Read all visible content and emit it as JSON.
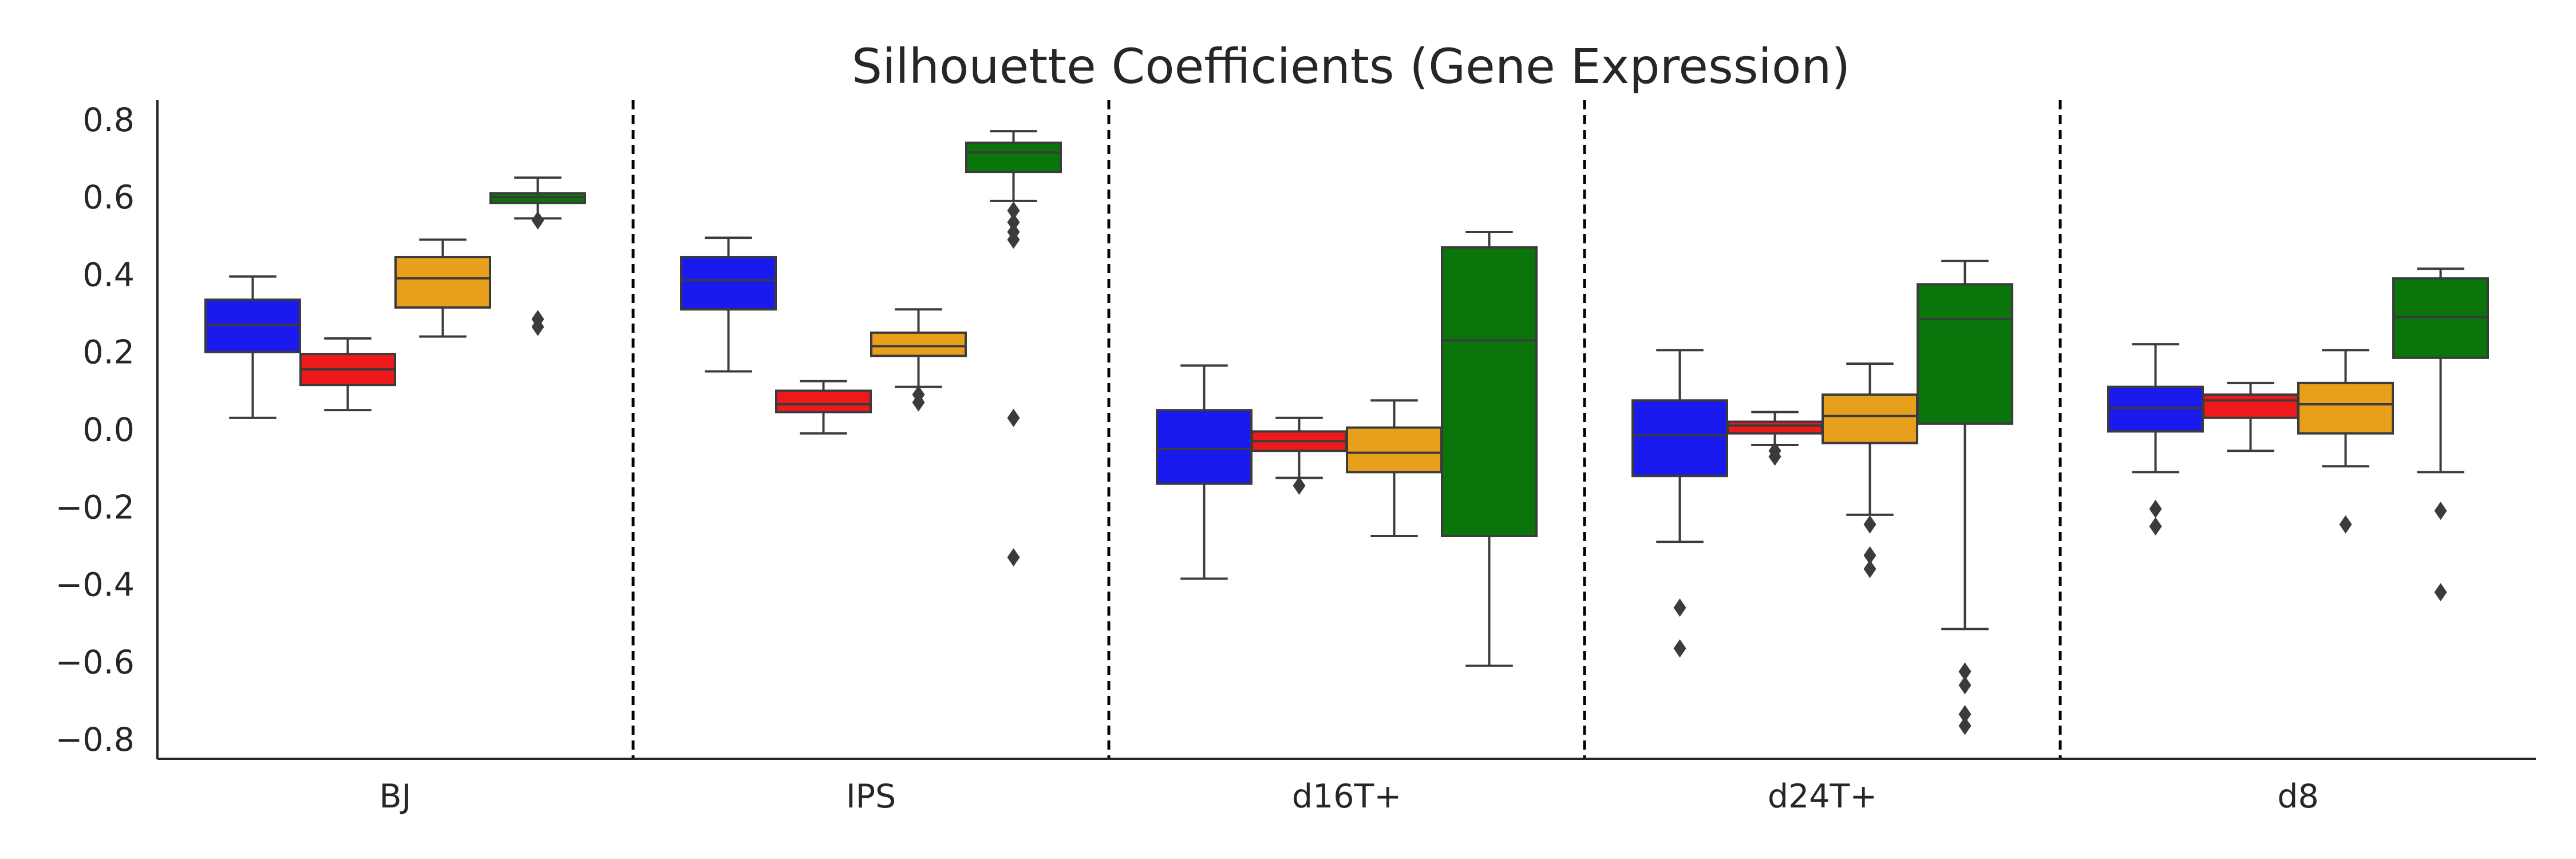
{
  "chart_data": {
    "type": "box",
    "title": "Silhouette Coefficients (Gene Expression)",
    "xlabel": "",
    "ylabel": "",
    "ylim": [
      -0.85,
      0.85
    ],
    "yticks": [
      0.8,
      0.6,
      0.4,
      0.2,
      0.0,
      -0.2,
      -0.4,
      -0.6,
      -0.8
    ],
    "ytick_labels": [
      "0.8",
      "0.6",
      "0.4",
      "0.2",
      "0.0",
      "−0.2",
      "−0.4",
      "−0.6",
      "−0.8"
    ],
    "categories": [
      "BJ",
      "IPS",
      "d16T+",
      "d24T+",
      "d8"
    ],
    "separators": "dashed",
    "grid": false,
    "colors": [
      "#1a1aee",
      "#ee1a1a",
      "#e89f1c",
      "#0a750a"
    ],
    "groups": [
      {
        "category": "BJ",
        "boxes": [
          {
            "whislo": 0.03,
            "q1": 0.2,
            "med": 0.27,
            "q3": 0.335,
            "whishi": 0.395,
            "fliers": []
          },
          {
            "whislo": 0.05,
            "q1": 0.115,
            "med": 0.155,
            "q3": 0.195,
            "whishi": 0.235,
            "fliers": []
          },
          {
            "whislo": 0.24,
            "q1": 0.315,
            "med": 0.39,
            "q3": 0.445,
            "whishi": 0.49,
            "fliers": []
          },
          {
            "whislo": 0.545,
            "q1": 0.585,
            "med": 0.6,
            "q3": 0.61,
            "whishi": 0.65,
            "fliers": [
              0.54,
              0.285,
              0.265
            ]
          }
        ]
      },
      {
        "category": "IPS",
        "boxes": [
          {
            "whislo": 0.15,
            "q1": 0.31,
            "med": 0.385,
            "q3": 0.445,
            "whishi": 0.495,
            "fliers": []
          },
          {
            "whislo": -0.01,
            "q1": 0.045,
            "med": 0.065,
            "q3": 0.1,
            "whishi": 0.125,
            "fliers": []
          },
          {
            "whislo": 0.11,
            "q1": 0.19,
            "med": 0.215,
            "q3": 0.25,
            "whishi": 0.31,
            "fliers": [
              0.09,
              0.07
            ]
          },
          {
            "whislo": 0.59,
            "q1": 0.665,
            "med": 0.715,
            "q3": 0.74,
            "whishi": 0.77,
            "fliers": [
              0.565,
              0.535,
              0.51,
              0.49,
              0.03,
              -0.33
            ]
          }
        ]
      },
      {
        "category": "d16T+",
        "boxes": [
          {
            "whislo": -0.385,
            "q1": -0.14,
            "med": -0.05,
            "q3": 0.05,
            "whishi": 0.165,
            "fliers": []
          },
          {
            "whislo": -0.125,
            "q1": -0.055,
            "med": -0.03,
            "q3": -0.005,
            "whishi": 0.03,
            "fliers": [
              -0.145
            ]
          },
          {
            "whislo": -0.275,
            "q1": -0.11,
            "med": -0.06,
            "q3": 0.005,
            "whishi": 0.075,
            "fliers": []
          },
          {
            "whislo": -0.61,
            "q1": -0.275,
            "med": 0.23,
            "q3": 0.47,
            "whishi": 0.51,
            "fliers": []
          }
        ]
      },
      {
        "category": "d24T+",
        "boxes": [
          {
            "whislo": -0.29,
            "q1": -0.12,
            "med": -0.015,
            "q3": 0.075,
            "whishi": 0.205,
            "fliers": [
              -0.46,
              -0.565
            ]
          },
          {
            "whislo": -0.04,
            "q1": -0.01,
            "med": 0.01,
            "q3": 0.02,
            "whishi": 0.045,
            "fliers": [
              -0.055,
              -0.07
            ]
          },
          {
            "whislo": -0.22,
            "q1": -0.035,
            "med": 0.035,
            "q3": 0.09,
            "whishi": 0.17,
            "fliers": [
              -0.245,
              -0.325,
              -0.36
            ]
          },
          {
            "whislo": -0.515,
            "q1": 0.015,
            "med": 0.285,
            "q3": 0.375,
            "whishi": 0.435,
            "fliers": [
              -0.625,
              -0.66,
              -0.735,
              -0.765
            ]
          }
        ]
      },
      {
        "category": "d8",
        "boxes": [
          {
            "whislo": -0.11,
            "q1": -0.005,
            "med": 0.055,
            "q3": 0.11,
            "whishi": 0.22,
            "fliers": [
              -0.205,
              -0.25
            ]
          },
          {
            "whislo": -0.055,
            "q1": 0.03,
            "med": 0.075,
            "q3": 0.09,
            "whishi": 0.12,
            "fliers": []
          },
          {
            "whislo": -0.095,
            "q1": -0.01,
            "med": 0.065,
            "q3": 0.12,
            "whishi": 0.205,
            "fliers": [
              -0.245
            ]
          },
          {
            "whislo": -0.11,
            "q1": 0.185,
            "med": 0.29,
            "q3": 0.39,
            "whishi": 0.415,
            "fliers": [
              -0.21,
              -0.42
            ]
          }
        ]
      }
    ]
  }
}
